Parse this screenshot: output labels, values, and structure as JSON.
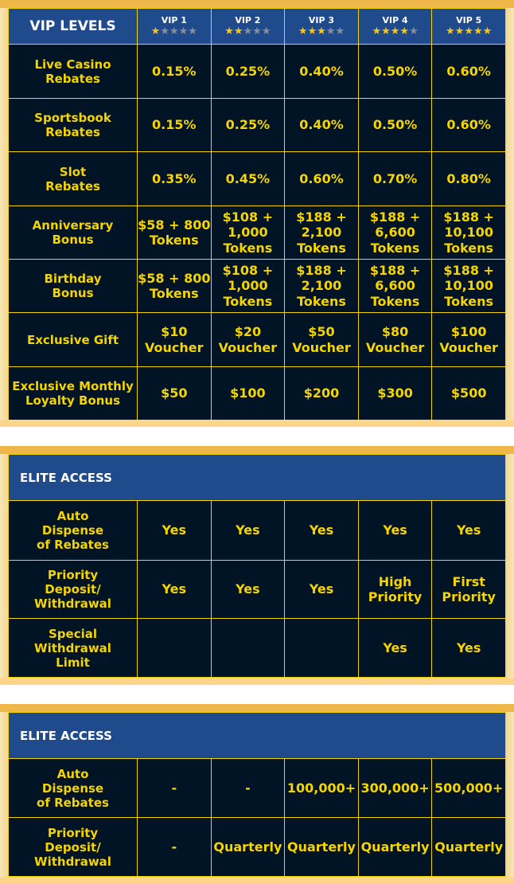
{
  "table1": {
    "title": "VIP LEVELS",
    "levels": [
      {
        "name": "VIP 1",
        "stars": 1
      },
      {
        "name": "VIP 2",
        "stars": 2
      },
      {
        "name": "VIP 3",
        "stars": 3
      },
      {
        "name": "VIP 4",
        "stars": 4
      },
      {
        "name": "VIP 5",
        "stars": 5
      }
    ],
    "rows": [
      {
        "label": [
          "Live Casino",
          "Rebates"
        ],
        "values": [
          "0.15%",
          "0.25%",
          "0.40%",
          "0.50%",
          "0.60%"
        ]
      },
      {
        "label": [
          "Sportsbook",
          "Rebates"
        ],
        "values": [
          "0.15%",
          "0.25%",
          "0.40%",
          "0.50%",
          "0.60%"
        ]
      },
      {
        "label": [
          "Slot",
          "Rebates"
        ],
        "values": [
          "0.35%",
          "0.45%",
          "0.60%",
          "0.70%",
          "0.80%"
        ]
      },
      {
        "label": [
          "Anniversary",
          "Bonus"
        ],
        "values": [
          "$58 + 800 Tokens",
          "$108 + 1,000 Tokens",
          "$188 + 2,100 Tokens",
          "$188 + 6,600 Tokens",
          "$188 + 10,100 Tokens"
        ]
      },
      {
        "label": [
          "Birthday",
          "Bonus"
        ],
        "values": [
          "$58 + 800 Tokens",
          "$108 + 1,000 Tokens",
          "$188 + 2,100 Tokens",
          "$188 + 6,600 Tokens",
          "$188 + 10,100 Tokens"
        ]
      },
      {
        "label": [
          "Exclusive Gift"
        ],
        "values": [
          "$10 Voucher",
          "$20 Voucher",
          "$50 Voucher",
          "$80 Voucher",
          "$100 Voucher"
        ]
      },
      {
        "label": [
          "Exclusive Monthly",
          "Loyalty Bonus"
        ],
        "values": [
          "$50",
          "$100",
          "$200",
          "$300",
          "$500"
        ]
      }
    ]
  },
  "table2": {
    "title": "ELITE ACCESS",
    "rows": [
      {
        "label": [
          "Auto",
          "Dispense",
          "of Rebates"
        ],
        "values": [
          "Yes",
          "Yes",
          "Yes",
          "Yes",
          "Yes"
        ]
      },
      {
        "label": [
          "Priority",
          "Deposit/",
          "Withdrawal"
        ],
        "values": [
          "Yes",
          "Yes",
          "Yes",
          "High Priority",
          "First Priority"
        ]
      },
      {
        "label": [
          "Special",
          "Withdrawal",
          "Limit"
        ],
        "values": [
          "",
          "",
          "",
          "Yes",
          "Yes"
        ]
      }
    ]
  },
  "table3": {
    "title": "ELITE ACCESS",
    "rows": [
      {
        "label": [
          "Auto",
          "Dispense",
          "of Rebates"
        ],
        "values": [
          "-",
          "-",
          "100,000+",
          "300,000+",
          "500,000+"
        ]
      },
      {
        "label": [
          "Priority",
          "Deposit/",
          "Withdrawal"
        ],
        "values": [
          "-",
          "Quarterly",
          "Quarterly",
          "Quarterly",
          "Quarterly"
        ]
      }
    ]
  },
  "colors": {
    "header": "#1f4a8c",
    "cell": "#001425",
    "text": "#f5d400",
    "frame": "#efb64a"
  }
}
